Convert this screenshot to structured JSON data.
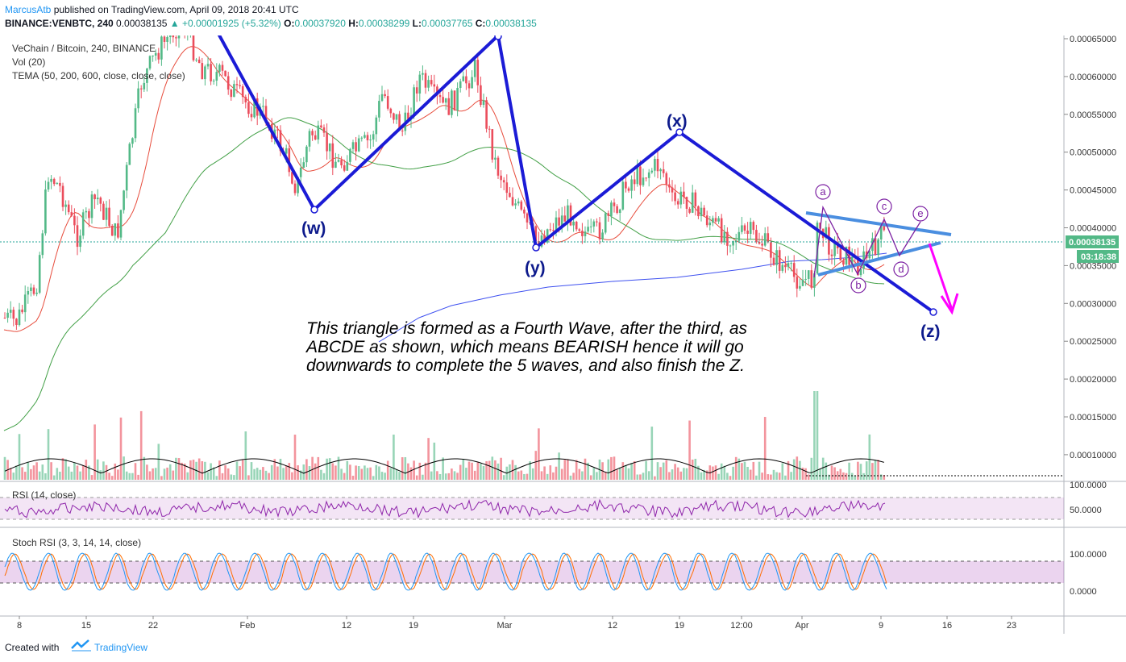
{
  "header": {
    "author": "MarcusAtb",
    "published_text": "published on TradingView.com, April 09, 2018 20:41 UTC",
    "symbol_line": "BINANCE:VENBTC, 240",
    "last": "0.00038135",
    "change": "▲ +0.00001925 (+5.32%)",
    "o_label": "O:",
    "o": "0.00037920",
    "h_label": "H:",
    "h": "0.00038299",
    "l_label": "L:",
    "l": "0.00037765",
    "c_label": "C:",
    "c": "0.00038135"
  },
  "legend": {
    "title": "VeChain / Bitcoin, 240, BINANCE",
    "vol": "Vol (20)",
    "tema": "TEMA (50, 200, 600, close, close, close)",
    "rsi": "RSI (14, close)",
    "stoch": "Stoch RSI (3, 3, 14, 14, close)"
  },
  "price_axis": {
    "labels": [
      "0.00065000",
      "0.00060000",
      "0.00055000",
      "0.00050000",
      "0.00045000",
      "0.00040000",
      "0.00035000",
      "0.00030000",
      "0.00025000",
      "0.00020000",
      "0.00015000",
      "0.00010000"
    ],
    "current_price": "0.00038135",
    "countdown": "03:18:38"
  },
  "rsi_axis": {
    "labels": [
      "100.0000",
      "50.0000"
    ]
  },
  "stoch_axis": {
    "labels": [
      "100.0000",
      "0.0000"
    ]
  },
  "time_axis": {
    "labels": [
      "8",
      "15",
      "22",
      "Feb",
      "12",
      "19",
      "Mar",
      "12",
      "19",
      "12:00",
      "Apr",
      "9",
      "16",
      "23"
    ]
  },
  "wave_labels": {
    "w": "(w)",
    "x": "(x)",
    "y": "(y)",
    "z": "(z)"
  },
  "triangle_labels": [
    "a",
    "b",
    "c",
    "d",
    "e"
  ],
  "annotation": "This triangle is formed as a Fourth Wave, after the third, as ABCDE as shown, which means BEARISH hence it will go downwards to complete the 5 waves, and also finish the Z.",
  "footer": {
    "created_with": "Created with",
    "brand": "TradingView"
  },
  "colors": {
    "up": "#53b987",
    "down": "#eb4d5c",
    "wave": "#1b1bd6",
    "triangle": "#4a8ee0",
    "abcde": "#7b1fa2",
    "arrow": "#ff00ff",
    "tema50": "#e74c3c",
    "tema200": "#43a047",
    "tema600": "#3f51f0"
  },
  "chart_data": {
    "type": "candlestick",
    "title": "VeChain / Bitcoin, 240, BINANCE",
    "y_range": [
      0.0,
      0.00068
    ],
    "wave_points_approx": [
      {
        "label": "(w)",
        "date": "Feb 9",
        "price": 0.000425
      },
      {
        "label": "top",
        "date": "Feb 28",
        "price": 0.00065
      },
      {
        "label": "(y)",
        "date": "Mar 4",
        "price": 0.000375
      },
      {
        "label": "(x)",
        "date": "Mar 19",
        "price": 0.000525
      },
      {
        "label": "(z)",
        "date": "Apr 14",
        "price": 0.000285
      }
    ],
    "last_price": 0.00038135
  }
}
